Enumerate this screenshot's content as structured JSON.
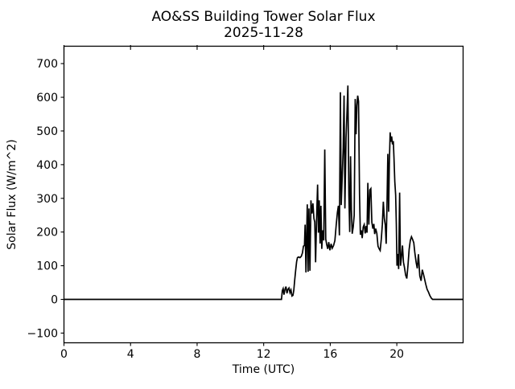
{
  "figure": {
    "background": "#ffffff",
    "text_color": "#000000"
  },
  "chart_data": {
    "type": "line",
    "title": "AO&SS Building Tower Solar Flux",
    "subtitle": "2025-11-28",
    "title_line1": "AO&SS Building Tower Solar Flux",
    "title_line2": "2025-11-28",
    "xlabel": "Time (UTC)",
    "ylabel": "Solar Flux (W/m^2)",
    "xlim": [
      0,
      23.983
    ],
    "ylim": [
      -128.8,
      751.6
    ],
    "xtick_values": [
      0,
      4,
      8,
      12,
      16,
      20
    ],
    "xtick_labels": [
      "0",
      "4",
      "8",
      "12",
      "16",
      "20"
    ],
    "ytick_values": [
      -100,
      0,
      100,
      200,
      300,
      400,
      500,
      600,
      700
    ],
    "ytick_labels": [
      "−100",
      "0",
      "100",
      "200",
      "300",
      "400",
      "500",
      "600",
      "700"
    ],
    "grid": false,
    "legend": null,
    "line_color": "#000000",
    "line_width": 1.7,
    "series": [
      {
        "name": "solar flux",
        "points": [
          [
            0.0,
            0
          ],
          [
            13.07,
            0
          ],
          [
            13.12,
            26
          ],
          [
            13.17,
            32
          ],
          [
            13.22,
            14
          ],
          [
            13.28,
            30
          ],
          [
            13.34,
            38
          ],
          [
            13.4,
            18
          ],
          [
            13.46,
            30
          ],
          [
            13.52,
            34
          ],
          [
            13.58,
            20
          ],
          [
            13.64,
            28
          ],
          [
            13.7,
            10
          ],
          [
            13.76,
            12
          ],
          [
            13.81,
            27
          ],
          [
            13.86,
            55
          ],
          [
            13.92,
            85
          ],
          [
            13.98,
            112
          ],
          [
            14.03,
            124
          ],
          [
            14.1,
            126
          ],
          [
            14.18,
            124
          ],
          [
            14.26,
            128
          ],
          [
            14.33,
            138
          ],
          [
            14.39,
            158
          ],
          [
            14.45,
            160
          ],
          [
            14.49,
            222
          ],
          [
            14.54,
            80
          ],
          [
            14.62,
            282
          ],
          [
            14.67,
            82
          ],
          [
            14.72,
            270
          ],
          [
            14.78,
            85
          ],
          [
            14.84,
            294
          ],
          [
            14.9,
            255
          ],
          [
            14.96,
            285
          ],
          [
            15.02,
            240
          ],
          [
            15.07,
            230
          ],
          [
            15.12,
            110
          ],
          [
            15.18,
            240
          ],
          [
            15.24,
            341
          ],
          [
            15.29,
            198
          ],
          [
            15.34,
            294
          ],
          [
            15.39,
            166
          ],
          [
            15.44,
            278
          ],
          [
            15.49,
            150
          ],
          [
            15.55,
            205
          ],
          [
            15.61,
            175
          ],
          [
            15.67,
            445
          ],
          [
            15.73,
            179
          ],
          [
            15.79,
            162
          ],
          [
            15.85,
            150
          ],
          [
            15.91,
            170
          ],
          [
            15.98,
            146
          ],
          [
            16.05,
            165
          ],
          [
            16.12,
            152
          ],
          [
            16.2,
            160
          ],
          [
            16.28,
            175
          ],
          [
            16.36,
            222
          ],
          [
            16.43,
            258
          ],
          [
            16.49,
            278
          ],
          [
            16.55,
            190
          ],
          [
            16.61,
            615
          ],
          [
            16.66,
            280
          ],
          [
            16.72,
            365
          ],
          [
            16.78,
            450
          ],
          [
            16.83,
            605
          ],
          [
            16.88,
            270
          ],
          [
            16.95,
            480
          ],
          [
            17.01,
            560
          ],
          [
            17.06,
            635
          ],
          [
            17.12,
            310
          ],
          [
            17.17,
            200
          ],
          [
            17.22,
            425
          ],
          [
            17.27,
            265
          ],
          [
            17.32,
            195
          ],
          [
            17.38,
            215
          ],
          [
            17.44,
            250
          ],
          [
            17.5,
            595
          ],
          [
            17.55,
            490
          ],
          [
            17.6,
            575
          ],
          [
            17.65,
            605
          ],
          [
            17.7,
            588
          ],
          [
            17.76,
            310
          ],
          [
            17.81,
            192
          ],
          [
            17.87,
            205
          ],
          [
            17.92,
            182
          ],
          [
            17.98,
            215
          ],
          [
            18.04,
            222
          ],
          [
            18.1,
            196
          ],
          [
            18.16,
            218
          ],
          [
            18.21,
            198
          ],
          [
            18.26,
            346
          ],
          [
            18.32,
            222
          ],
          [
            18.38,
            325
          ],
          [
            18.44,
            329
          ],
          [
            18.5,
            229
          ],
          [
            18.56,
            210
          ],
          [
            18.62,
            224
          ],
          [
            18.67,
            194
          ],
          [
            18.73,
            210
          ],
          [
            18.8,
            196
          ],
          [
            18.87,
            158
          ],
          [
            18.94,
            150
          ],
          [
            19.0,
            145
          ],
          [
            19.07,
            180
          ],
          [
            19.13,
            222
          ],
          [
            19.19,
            290
          ],
          [
            19.25,
            240
          ],
          [
            19.31,
            220
          ],
          [
            19.36,
            165
          ],
          [
            19.41,
            280
          ],
          [
            19.46,
            432
          ],
          [
            19.51,
            260
          ],
          [
            19.55,
            400
          ],
          [
            19.6,
            496
          ],
          [
            19.64,
            468
          ],
          [
            19.69,
            484
          ],
          [
            19.74,
            460
          ],
          [
            19.79,
            470
          ],
          [
            19.83,
            420
          ],
          [
            19.88,
            349
          ],
          [
            19.93,
            310
          ],
          [
            19.97,
            224
          ],
          [
            20.01,
            100
          ],
          [
            20.06,
            135
          ],
          [
            20.11,
            90
          ],
          [
            20.17,
            317
          ],
          [
            20.22,
            100
          ],
          [
            20.28,
            126
          ],
          [
            20.34,
            160
          ],
          [
            20.4,
            110
          ],
          [
            20.46,
            95
          ],
          [
            20.53,
            72
          ],
          [
            20.6,
            62
          ],
          [
            20.67,
            100
          ],
          [
            20.74,
            148
          ],
          [
            20.81,
            175
          ],
          [
            20.88,
            186
          ],
          [
            20.95,
            178
          ],
          [
            21.02,
            168
          ],
          [
            21.08,
            140
          ],
          [
            21.16,
            110
          ],
          [
            21.23,
            92
          ],
          [
            21.3,
            134
          ],
          [
            21.38,
            70
          ],
          [
            21.46,
            55
          ],
          [
            21.53,
            88
          ],
          [
            21.6,
            75
          ],
          [
            21.67,
            60
          ],
          [
            21.74,
            45
          ],
          [
            21.82,
            30
          ],
          [
            21.9,
            22
          ],
          [
            21.98,
            12
          ],
          [
            22.07,
            4
          ],
          [
            22.15,
            0
          ],
          [
            23.98,
            0
          ]
        ]
      }
    ]
  }
}
